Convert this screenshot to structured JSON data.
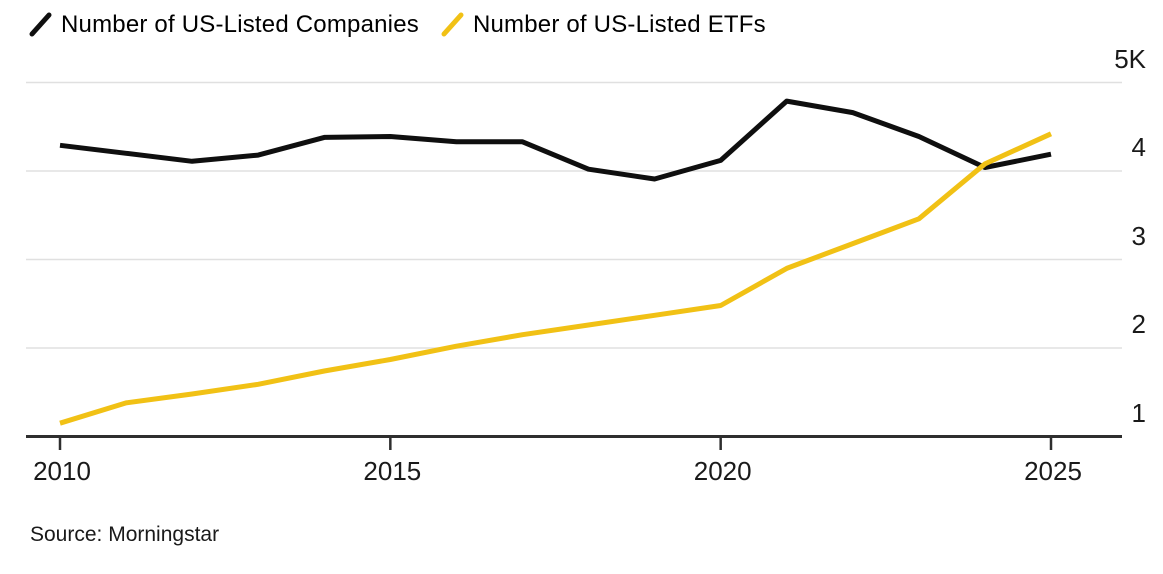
{
  "chart_data": {
    "type": "line",
    "title": "",
    "xlabel": "",
    "ylabel": "",
    "grid": "horizontal",
    "legend_position": "top-left",
    "xlim": [
      2010,
      2025
    ],
    "ylim": [
      1000,
      5000
    ],
    "x": [
      2010,
      2011,
      2012,
      2013,
      2014,
      2015,
      2016,
      2017,
      2018,
      2019,
      2020,
      2021,
      2022,
      2023,
      2024,
      2025
    ],
    "series": [
      {
        "name": "Number of US-Listed Companies",
        "color": "#0f0f0f",
        "values": [
          4290,
          4200,
          4110,
          4180,
          4380,
          4390,
          4330,
          4330,
          4020,
          3910,
          4120,
          4790,
          4660,
          4390,
          4040,
          4190
        ]
      },
      {
        "name": "Number of US-Listed ETFs",
        "color": "#f1c115",
        "values": [
          1150,
          1380,
          1480,
          1590,
          1740,
          1870,
          2020,
          2150,
          2260,
          2370,
          2480,
          2900,
          3180,
          3460,
          4080,
          4420
        ]
      }
    ],
    "x_ticks": [
      {
        "value": 2010,
        "label": "2010"
      },
      {
        "value": 2015,
        "label": "2015"
      },
      {
        "value": 2020,
        "label": "2020"
      },
      {
        "value": 2025,
        "label": "2025"
      }
    ],
    "y_ticks": [
      {
        "value": 5000,
        "label": "5K"
      },
      {
        "value": 4000,
        "label": "4"
      },
      {
        "value": 3000,
        "label": "3"
      },
      {
        "value": 2000,
        "label": "2"
      },
      {
        "value": 1000,
        "label": "1"
      }
    ],
    "source": "Source: Morningstar"
  },
  "colors": {
    "background": "#ffffff",
    "gridline": "#e0e0e0",
    "axis": "#2e2e2e",
    "tick_text": "#1a1a1a"
  }
}
